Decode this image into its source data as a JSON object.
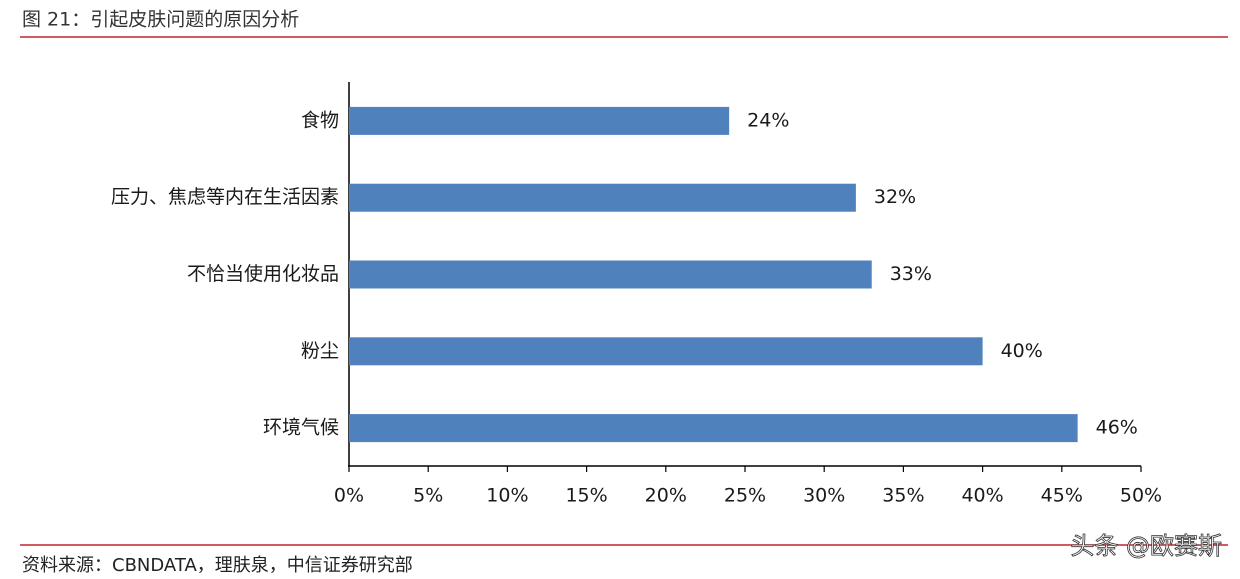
{
  "chart_data": {
    "type": "bar",
    "orientation": "horizontal",
    "title": "图 21：引起皮肤问题的原因分析",
    "source": "资料来源：CBNDATA，理肤泉，中信证券研究部",
    "watermark": "头条 @欧赛斯",
    "categories": [
      "食物",
      "压力、焦虑等内在生活因素",
      "不恰当使用化妆品",
      "粉尘",
      "环境气候"
    ],
    "values": [
      24,
      32,
      33,
      40,
      46
    ],
    "value_labels": [
      "24%",
      "32%",
      "33%",
      "40%",
      "46%"
    ],
    "color": "#4f81bd",
    "xlim": [
      0,
      50
    ],
    "xticks": [
      {
        "value": 0,
        "label": "0%"
      },
      {
        "value": 5,
        "label": "5%"
      },
      {
        "value": 10,
        "label": "10%"
      },
      {
        "value": 15,
        "label": "15%"
      },
      {
        "value": 20,
        "label": "20%"
      },
      {
        "value": 25,
        "label": "25%"
      },
      {
        "value": 30,
        "label": "30%"
      },
      {
        "value": 35,
        "label": "35%"
      },
      {
        "value": 40,
        "label": "40%"
      },
      {
        "value": 45,
        "label": "45%"
      },
      {
        "value": 50,
        "label": "50%"
      }
    ],
    "grid": false
  }
}
